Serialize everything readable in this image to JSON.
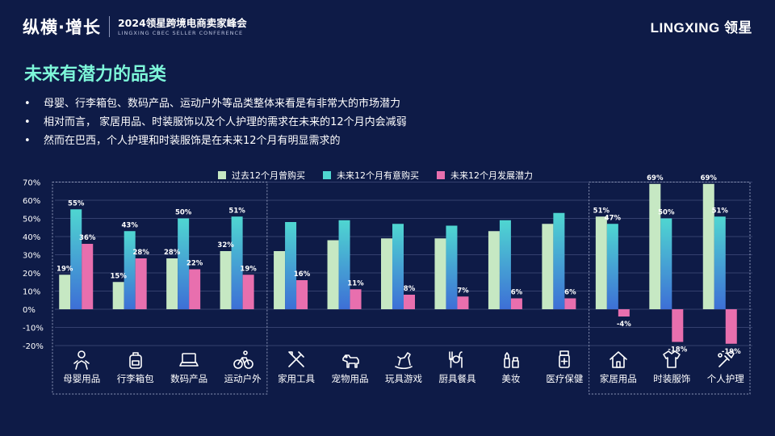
{
  "header": {
    "slogan": "纵横·增长",
    "event_title": "2024领星跨境电商卖家峰会",
    "event_subtitle": "LINGXING CBEC SELLER CONFERENCE",
    "logo": "LINGXING 领星"
  },
  "page_title": "未来有潜力的品类",
  "bullets": [
    "母婴、行李箱包、数码产品、运动户外等品类整体来看是有非常大的市场潜力",
    "相对而言， 家居用品、时装服饰以及个人护理的需求在未来的12个月内会减弱",
    "然而在巴西，个人护理和时装服饰是在未来12个月有明显需求的"
  ],
  "bullet_marker": "•",
  "colors": {
    "background": "#0e1b47",
    "title": "#7df7d9",
    "past": "#c6e8c3",
    "future_top": "#4fd6d1",
    "future_bottom": "#3d6fd6",
    "potential": "#e86fae",
    "grid": "#34406e",
    "dashed_box": "#8f98b8"
  },
  "chart_data": {
    "type": "bar",
    "categories": [
      "母婴用品",
      "行李箱包",
      "数码产品",
      "运动户外",
      "家用工具",
      "宠物用品",
      "玩具游戏",
      "厨具餐具",
      "美妆",
      "医疗保健",
      "家居用品",
      "时装服饰",
      "个人护理"
    ],
    "category_icons": [
      "baby-icon",
      "backpack-icon",
      "laptop-icon",
      "cyclist-icon",
      "tools-icon",
      "dog-icon",
      "rocking-horse-icon",
      "cutlery-icon",
      "cosmetics-icon",
      "medicine-icon",
      "house-icon",
      "shirt-icon",
      "beauty-icon"
    ],
    "series": [
      {
        "name": "过去12个月曾购买",
        "values": [
          19,
          15,
          28,
          32,
          32,
          38,
          39,
          39,
          43,
          47,
          51,
          69,
          69
        ],
        "labels": [
          "19%",
          "15%",
          "28%",
          "32%",
          "",
          "",
          "",
          "",
          "",
          "",
          "51%",
          "69%",
          "69%"
        ]
      },
      {
        "name": "未来12个月有意购买",
        "values": [
          55,
          43,
          50,
          51,
          48,
          49,
          47,
          46,
          49,
          53,
          47,
          50,
          51
        ],
        "labels": [
          "55%",
          "43%",
          "50%",
          "51%",
          "",
          "",
          "",
          "",
          "",
          "",
          "47%",
          "50%",
          "51%"
        ]
      },
      {
        "name": "未来12个月发展潜力",
        "values": [
          36,
          28,
          22,
          19,
          16,
          11,
          8,
          7,
          6,
          6,
          -4,
          -18,
          -19
        ],
        "labels": [
          "36%",
          "28%",
          "22%",
          "19%",
          "16%",
          "11%",
          "8%",
          "7%",
          "6%",
          "6%",
          "-4%",
          "-18%",
          "-19%"
        ]
      }
    ],
    "y_ticks": [
      "70%",
      "60%",
      "50%",
      "40%",
      "30%",
      "20%",
      "10%",
      "0%",
      "-10%",
      "-20%"
    ],
    "ylim": [
      -20,
      70
    ],
    "grid": true,
    "legend_position": "top",
    "highlight_groups": [
      [
        0,
        3
      ],
      [
        10,
        12
      ]
    ]
  }
}
